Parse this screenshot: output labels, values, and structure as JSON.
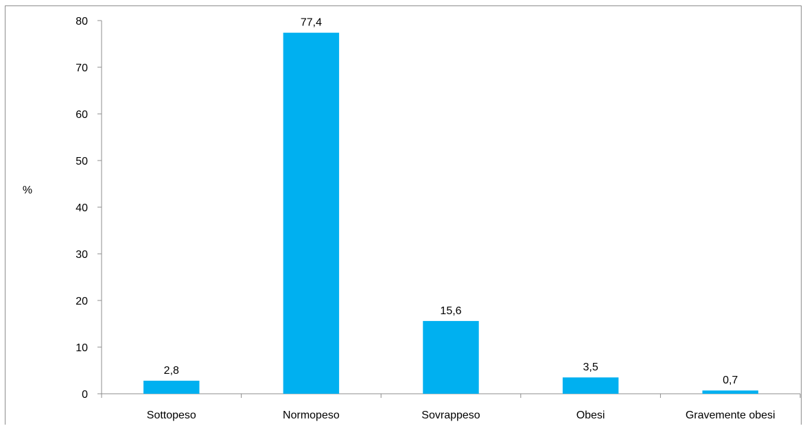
{
  "chart_data": {
    "type": "bar",
    "categories": [
      "Sottopeso",
      "Normopeso",
      "Sovrappeso",
      "Obesi",
      "Gravemente obesi"
    ],
    "values": [
      2.8,
      77.4,
      15.6,
      3.5,
      0.7
    ],
    "data_labels": [
      "2,8",
      "77,4",
      "15,6",
      "3,5",
      "0,7"
    ],
    "title": "",
    "xlabel": "",
    "ylabel": "%",
    "ylim": [
      0,
      80
    ],
    "yticks": [
      0,
      10,
      20,
      30,
      40,
      50,
      60,
      70,
      80
    ],
    "grid": false,
    "legend": "none",
    "bar_color": "#00B0F0"
  }
}
